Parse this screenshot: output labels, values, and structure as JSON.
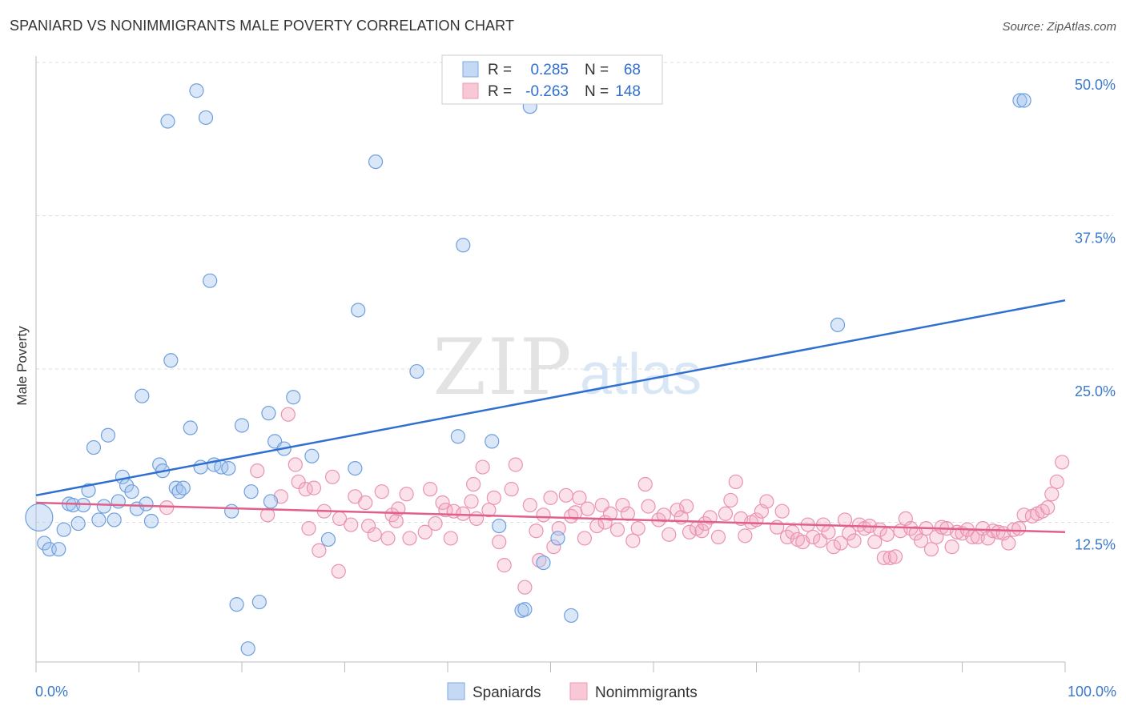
{
  "title": "SPANIARD VS NONIMMIGRANTS MALE POVERTY CORRELATION CHART",
  "source": "Source: ZipAtlas.com",
  "watermark": {
    "zip": "ZIP",
    "atlas": "atlas"
  },
  "legend": {
    "r_label": "R =",
    "n_label": "N =",
    "entries": [
      {
        "r": "0.285",
        "n": "68"
      },
      {
        "r": "-0.263",
        "n": "148"
      }
    ]
  },
  "chart_data": {
    "type": "scatter",
    "title": "SPANIARD VS NONIMMIGRANTS MALE POVERTY CORRELATION CHART",
    "xlabel": "",
    "ylabel": "Male Poverty",
    "xlim": [
      0,
      100
    ],
    "ylim": [
      0,
      50
    ],
    "x_tick_labels": [
      "0.0%",
      "100.0%"
    ],
    "y_ticks": [
      12.5,
      25.0,
      37.5,
      50.0
    ],
    "y_tick_labels": [
      "12.5%",
      "25.0%",
      "37.5%",
      "50.0%"
    ],
    "grid": true,
    "legend_position": "top-center",
    "series": [
      {
        "name": "Spaniards",
        "color": "#8fb4e8",
        "line_color": "#2f6fd0",
        "trend": [
          [
            0,
            14.7
          ],
          [
            100,
            30.6
          ]
        ],
        "points": [
          [
            0.3,
            12.9
          ],
          [
            0.8,
            10.8
          ],
          [
            1.3,
            10.3
          ],
          [
            2.2,
            10.3
          ],
          [
            2.7,
            11.9
          ],
          [
            3.2,
            14.0
          ],
          [
            3.6,
            13.9
          ],
          [
            4.1,
            12.4
          ],
          [
            4.6,
            13.9
          ],
          [
            5.1,
            15.1
          ],
          [
            5.6,
            18.6
          ],
          [
            6.1,
            12.7
          ],
          [
            6.6,
            13.8
          ],
          [
            7.0,
            19.6
          ],
          [
            7.6,
            12.7
          ],
          [
            8.0,
            14.2
          ],
          [
            8.4,
            16.2
          ],
          [
            8.8,
            15.5
          ],
          [
            9.3,
            15.0
          ],
          [
            9.8,
            13.6
          ],
          [
            10.3,
            22.8
          ],
          [
            10.7,
            14.0
          ],
          [
            11.2,
            12.6
          ],
          [
            12.0,
            17.2
          ],
          [
            12.3,
            16.7
          ],
          [
            12.8,
            45.2
          ],
          [
            13.1,
            25.7
          ],
          [
            13.6,
            15.3
          ],
          [
            13.9,
            15.0
          ],
          [
            14.3,
            15.3
          ],
          [
            15.0,
            20.2
          ],
          [
            15.6,
            47.7
          ],
          [
            16.0,
            17.0
          ],
          [
            16.5,
            45.5
          ],
          [
            16.9,
            32.2
          ],
          [
            17.3,
            17.2
          ],
          [
            18.0,
            17.0
          ],
          [
            18.7,
            16.9
          ],
          [
            19.0,
            13.4
          ],
          [
            19.5,
            5.8
          ],
          [
            20.0,
            20.4
          ],
          [
            20.6,
            2.2
          ],
          [
            20.9,
            15.0
          ],
          [
            21.7,
            6.0
          ],
          [
            22.6,
            21.4
          ],
          [
            22.8,
            14.2
          ],
          [
            23.2,
            19.1
          ],
          [
            24.1,
            18.5
          ],
          [
            25.0,
            22.7
          ],
          [
            26.8,
            17.9
          ],
          [
            28.4,
            11.1
          ],
          [
            31.0,
            16.9
          ],
          [
            31.3,
            29.8
          ],
          [
            33.0,
            41.9
          ],
          [
            37.0,
            24.8
          ],
          [
            41.0,
            19.5
          ],
          [
            41.5,
            35.1
          ],
          [
            44.3,
            19.1
          ],
          [
            45.0,
            12.2
          ],
          [
            47.2,
            5.3
          ],
          [
            47.5,
            5.4
          ],
          [
            48.0,
            46.4
          ],
          [
            49.3,
            9.2
          ],
          [
            50.7,
            11.2
          ],
          [
            52.0,
            4.9
          ],
          [
            77.9,
            28.6
          ],
          [
            95.6,
            46.9
          ],
          [
            96.0,
            46.9
          ]
        ]
      },
      {
        "name": "Nonimmigrants",
        "color": "#f0a0ba",
        "line_color": "#e0608a",
        "trend": [
          [
            0,
            14.1
          ],
          [
            100,
            11.7
          ]
        ],
        "points": [
          [
            12.7,
            13.7
          ],
          [
            21.5,
            16.7
          ],
          [
            22.5,
            13.1
          ],
          [
            23.8,
            14.6
          ],
          [
            24.5,
            21.3
          ],
          [
            25.2,
            17.2
          ],
          [
            25.5,
            15.8
          ],
          [
            26.2,
            15.2
          ],
          [
            26.5,
            12.0
          ],
          [
            27.0,
            15.3
          ],
          [
            27.5,
            10.2
          ],
          [
            28.0,
            13.4
          ],
          [
            28.8,
            16.2
          ],
          [
            29.4,
            8.5
          ],
          [
            29.5,
            12.8
          ],
          [
            30.6,
            12.3
          ],
          [
            31.0,
            14.6
          ],
          [
            32.0,
            14.1
          ],
          [
            32.3,
            12.2
          ],
          [
            32.9,
            11.5
          ],
          [
            33.6,
            15.0
          ],
          [
            34.2,
            11.2
          ],
          [
            34.6,
            13.1
          ],
          [
            35.0,
            12.6
          ],
          [
            35.2,
            13.6
          ],
          [
            36.0,
            14.8
          ],
          [
            36.3,
            11.2
          ],
          [
            37.8,
            11.7
          ],
          [
            38.3,
            15.2
          ],
          [
            38.8,
            12.4
          ],
          [
            39.5,
            14.1
          ],
          [
            39.8,
            13.5
          ],
          [
            40.3,
            11.2
          ],
          [
            40.6,
            13.4
          ],
          [
            41.5,
            13.2
          ],
          [
            42.3,
            14.2
          ],
          [
            42.5,
            15.6
          ],
          [
            42.8,
            12.8
          ],
          [
            43.4,
            17.0
          ],
          [
            44.0,
            13.5
          ],
          [
            44.5,
            14.5
          ],
          [
            45.0,
            10.9
          ],
          [
            45.5,
            9.0
          ],
          [
            46.2,
            15.2
          ],
          [
            46.6,
            17.2
          ],
          [
            47.5,
            7.2
          ],
          [
            48.0,
            13.9
          ],
          [
            48.6,
            11.8
          ],
          [
            48.9,
            9.4
          ],
          [
            49.3,
            13.1
          ],
          [
            50.0,
            14.5
          ],
          [
            50.3,
            10.5
          ],
          [
            50.8,
            12.0
          ],
          [
            51.5,
            14.7
          ],
          [
            52.0,
            13.0
          ],
          [
            52.4,
            13.3
          ],
          [
            52.8,
            14.5
          ],
          [
            53.3,
            11.2
          ],
          [
            53.6,
            13.6
          ],
          [
            54.5,
            12.2
          ],
          [
            55.0,
            13.9
          ],
          [
            55.3,
            12.5
          ],
          [
            55.8,
            13.2
          ],
          [
            56.5,
            11.9
          ],
          [
            57.0,
            13.9
          ],
          [
            57.5,
            13.2
          ],
          [
            58.0,
            11.0
          ],
          [
            58.5,
            12.0
          ],
          [
            59.2,
            15.6
          ],
          [
            59.5,
            13.8
          ],
          [
            60.5,
            12.7
          ],
          [
            61.0,
            13.1
          ],
          [
            61.5,
            11.5
          ],
          [
            62.3,
            13.5
          ],
          [
            62.7,
            12.9
          ],
          [
            63.2,
            13.8
          ],
          [
            63.5,
            11.7
          ],
          [
            64.2,
            12.0
          ],
          [
            64.7,
            11.8
          ],
          [
            65.0,
            12.4
          ],
          [
            65.5,
            12.9
          ],
          [
            66.3,
            11.3
          ],
          [
            67.0,
            13.2
          ],
          [
            67.5,
            14.3
          ],
          [
            68.0,
            15.8
          ],
          [
            68.5,
            12.8
          ],
          [
            68.9,
            11.4
          ],
          [
            69.5,
            12.5
          ],
          [
            70.0,
            12.7
          ],
          [
            70.5,
            13.4
          ],
          [
            71.0,
            14.2
          ],
          [
            72.0,
            12.1
          ],
          [
            72.5,
            13.4
          ],
          [
            73.0,
            11.3
          ],
          [
            73.5,
            11.7
          ],
          [
            74.0,
            11.1
          ],
          [
            74.5,
            10.9
          ],
          [
            75.0,
            12.3
          ],
          [
            75.5,
            11.3
          ],
          [
            76.2,
            11.0
          ],
          [
            76.5,
            12.3
          ],
          [
            77.0,
            11.7
          ],
          [
            77.5,
            10.5
          ],
          [
            78.2,
            10.8
          ],
          [
            78.6,
            12.7
          ],
          [
            79.0,
            11.6
          ],
          [
            79.5,
            11.0
          ],
          [
            80.0,
            12.3
          ],
          [
            80.5,
            12.0
          ],
          [
            81.0,
            12.2
          ],
          [
            81.5,
            10.9
          ],
          [
            82.0,
            11.9
          ],
          [
            82.4,
            9.6
          ],
          [
            82.7,
            11.5
          ],
          [
            83.0,
            9.6
          ],
          [
            83.5,
            9.7
          ],
          [
            84.0,
            11.8
          ],
          [
            84.5,
            12.8
          ],
          [
            85.0,
            12.0
          ],
          [
            85.5,
            11.6
          ],
          [
            86.0,
            11.0
          ],
          [
            86.5,
            12.0
          ],
          [
            87.0,
            10.3
          ],
          [
            87.5,
            11.3
          ],
          [
            88.0,
            12.1
          ],
          [
            88.5,
            12.0
          ],
          [
            89.0,
            10.5
          ],
          [
            89.5,
            11.7
          ],
          [
            90.0,
            11.6
          ],
          [
            90.5,
            11.9
          ],
          [
            91.0,
            11.3
          ],
          [
            91.5,
            11.3
          ],
          [
            92.0,
            12.0
          ],
          [
            92.5,
            11.2
          ],
          [
            93.0,
            11.8
          ],
          [
            93.5,
            11.7
          ],
          [
            94.0,
            11.6
          ],
          [
            94.5,
            10.8
          ],
          [
            95.0,
            11.9
          ],
          [
            95.5,
            12.0
          ],
          [
            96.0,
            13.1
          ],
          [
            96.8,
            13.0
          ],
          [
            97.3,
            13.2
          ],
          [
            97.8,
            13.4
          ],
          [
            98.3,
            13.7
          ],
          [
            98.7,
            14.8
          ],
          [
            99.2,
            15.8
          ],
          [
            99.7,
            17.4
          ]
        ]
      }
    ]
  }
}
